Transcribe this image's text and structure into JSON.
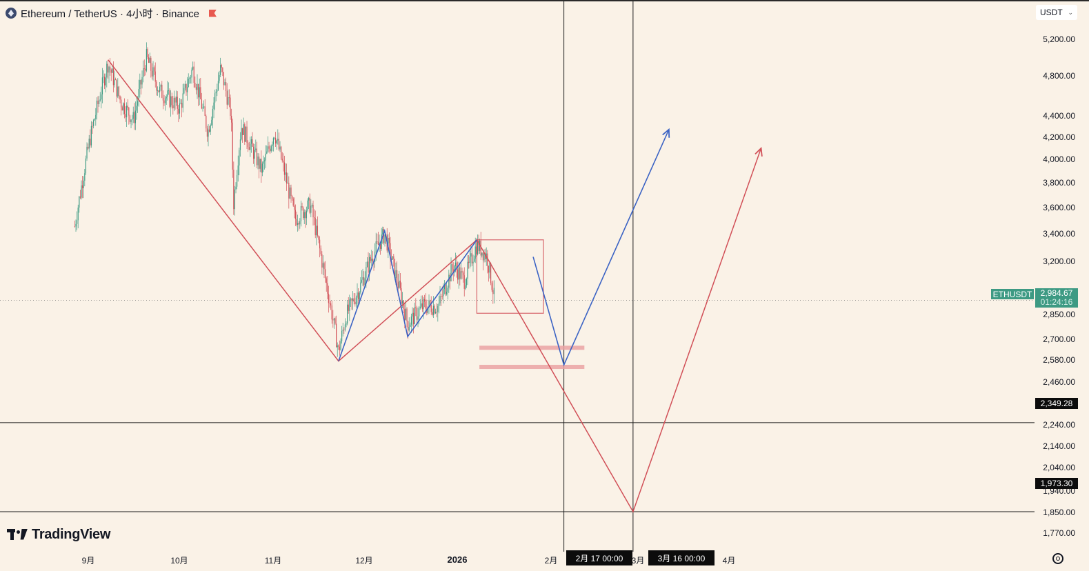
{
  "header": {
    "title": "Ethereum / TetherUS · 4小时 · Binance",
    "currency": "USDT"
  },
  "price_axis": {
    "labels": [
      "5,200.00",
      "4,800.00",
      "4,400.00",
      "4,200.00",
      "4,000.00",
      "3,800.00",
      "3,600.00",
      "3,400.00",
      "3,200.00",
      "2,850.00",
      "2,700.00",
      "2,580.00",
      "2,460.00",
      "2,240.00",
      "2,140.00",
      "2,040.00",
      "1,940.00",
      "1,850.00",
      "1,770.00"
    ],
    "current_symbol": "ETHUSDT",
    "current_price": "2,984.67",
    "countdown": "01:24:16",
    "hline_1": "2,349.28",
    "hline_2": "1,973.30"
  },
  "time_axis": {
    "labels": [
      "9月",
      "10月",
      "11月",
      "12月",
      "2026",
      "2月",
      "3月",
      "4月"
    ],
    "crosshair_1": "2月 17   00:00",
    "crosshair_2": "3月 16   00:00"
  },
  "branding": {
    "logo_text": "TradingView"
  },
  "colors": {
    "background": "#faf2e7",
    "candle_up": "#3d9a83",
    "candle_down": "#d14f57",
    "trend_red": "#d14f57",
    "trend_blue": "#3b63c4",
    "zone_pink": "#eaa3a3"
  },
  "chart_data": {
    "type": "candlestick",
    "symbol": "ETHUSDT",
    "interval": "4小时",
    "exchange": "Binance",
    "y_scale": "log",
    "ylim": [
      1720,
      5400
    ],
    "x_ticks": [
      "9月",
      "10月",
      "11月",
      "12月",
      "2026",
      "2月",
      "3月",
      "4月"
    ],
    "current_price": 2984.67,
    "horizontal_levels": [
      2349.28,
      1973.3
    ],
    "price_path_approx": [
      {
        "date": "2025-08-10",
        "price": 3450
      },
      {
        "date": "2025-08-16",
        "price": 4100
      },
      {
        "date": "2025-08-23",
        "price": 4750
      },
      {
        "date": "2025-08-28",
        "price": 4400
      },
      {
        "date": "2025-09-02",
        "price": 4250
      },
      {
        "date": "2025-09-07",
        "price": 4800
      },
      {
        "date": "2025-09-12",
        "price": 4500
      },
      {
        "date": "2025-09-20",
        "price": 4350
      },
      {
        "date": "2025-09-25",
        "price": 4700
      },
      {
        "date": "2025-10-01",
        "price": 4150
      },
      {
        "date": "2025-10-06",
        "price": 4700
      },
      {
        "date": "2025-10-10",
        "price": 4300
      },
      {
        "date": "2025-10-11",
        "price": 3600
      },
      {
        "date": "2025-10-14",
        "price": 4200
      },
      {
        "date": "2025-10-22",
        "price": 3850
      },
      {
        "date": "2025-10-27",
        "price": 4150
      },
      {
        "date": "2025-11-04",
        "price": 3500
      },
      {
        "date": "2025-11-10",
        "price": 3600
      },
      {
        "date": "2025-11-16",
        "price": 3100
      },
      {
        "date": "2025-11-21",
        "price": 2700
      },
      {
        "date": "2025-11-24",
        "price": 2900
      },
      {
        "date": "2025-11-29",
        "price": 3050
      },
      {
        "date": "2025-12-04",
        "price": 3250
      },
      {
        "date": "2025-12-09",
        "price": 3400
      },
      {
        "date": "2025-12-14",
        "price": 3100
      },
      {
        "date": "2025-12-18",
        "price": 2850
      },
      {
        "date": "2025-12-24",
        "price": 2950
      },
      {
        "date": "2025-12-30",
        "price": 2950
      },
      {
        "date": "2026-01-05",
        "price": 3200
      },
      {
        "date": "2026-01-09",
        "price": 3100
      },
      {
        "date": "2026-01-14",
        "price": 3330
      },
      {
        "date": "2026-01-18",
        "price": 3250
      },
      {
        "date": "2026-01-21",
        "price": 2984.67
      }
    ],
    "drawings": {
      "red_path": [
        {
          "date": "2025-08-23",
          "price": 4780
        },
        {
          "date": "2025-11-21",
          "price": 2650
        },
        {
          "date": "2026-01-14",
          "price": 3360
        },
        {
          "date": "2026-03-16",
          "price": 1973.3
        },
        {
          "date": "2026-05-05",
          "price": 4020
        }
      ],
      "blue_path_1": [
        {
          "date": "2025-11-21",
          "price": 2650
        },
        {
          "date": "2025-12-09",
          "price": 3420
        },
        {
          "date": "2025-12-18",
          "price": 2780
        },
        {
          "date": "2026-01-14",
          "price": 3360
        }
      ],
      "blue_path_2": [
        {
          "date": "2026-02-05",
          "price": 3250
        },
        {
          "date": "2026-02-17",
          "price": 2630
        },
        {
          "date": "2026-03-30",
          "price": 4170
        }
      ],
      "box": {
        "from": "2026-01-14",
        "to": "2026-02-09",
        "top": 3360,
        "bottom": 2910
      },
      "zones": [
        2720,
        2620
      ]
    }
  }
}
